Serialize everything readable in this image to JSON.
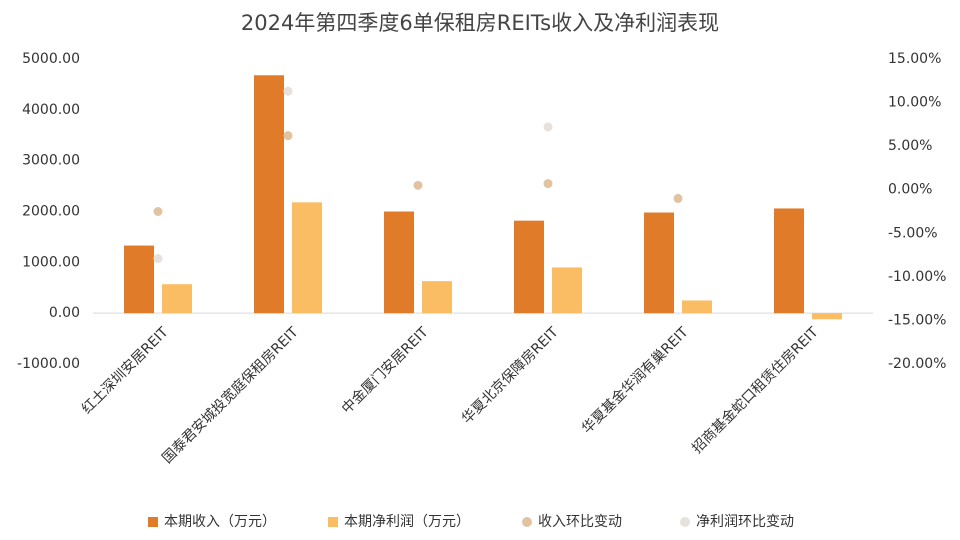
{
  "chart_data": {
    "type": "bar-line",
    "title": "2024年第四季度6单保租房REITs收入及净利润表现",
    "categories": [
      "红土深圳安居REIT",
      "国泰君安城投宽庭保租房REIT",
      "中金厦门安居REIT",
      "华夏北京保障房REIT",
      "华夏基金华润有巢REIT",
      "招商基金蛇口租赁住房REIT"
    ],
    "series": [
      {
        "name": "本期收入（万元）",
        "color": "#e07b29",
        "kind": "bar",
        "values": [
          1330,
          4680,
          2000,
          1820,
          1980,
          2060
        ]
      },
      {
        "name": "本期净利润（万元）",
        "color": "#fbbd63",
        "kind": "bar",
        "values": [
          570,
          2180,
          630,
          900,
          250,
          -120
        ]
      },
      {
        "name": "收入环比变动",
        "color": "#e2c3a1",
        "kind": "dot",
        "axis": "y2",
        "values": [
          -2.5,
          6.2,
          0.5,
          0.7,
          -1.0,
          null
        ]
      },
      {
        "name": "净利润环比变动",
        "color": "#e6e1dc",
        "kind": "dot",
        "axis": "y2",
        "values": [
          -7.9,
          11.3,
          null,
          7.2,
          null,
          null
        ]
      }
    ],
    "ylim": [
      -1000,
      5000
    ],
    "yticks": [
      {
        "value": -1000,
        "label": "-1000.00"
      },
      {
        "value": 0,
        "label": "0.00"
      },
      {
        "value": 1000,
        "label": "1000.00"
      },
      {
        "value": 2000,
        "label": "2000.00"
      },
      {
        "value": 3000,
        "label": "3000.00"
      },
      {
        "value": 4000,
        "label": "4000.00"
      },
      {
        "value": 5000,
        "label": "5000.00"
      }
    ],
    "y2lim": [
      -20,
      15
    ],
    "y2ticks": [
      {
        "value": -20,
        "label": "-20.00%"
      },
      {
        "value": -15,
        "label": "-15.00%"
      },
      {
        "value": -10,
        "label": "-10.00%"
      },
      {
        "value": -5,
        "label": "-5.00%"
      },
      {
        "value": 0,
        "label": "0.00%"
      },
      {
        "value": 5,
        "label": "5.00%"
      },
      {
        "value": 10,
        "label": "10.00%"
      },
      {
        "value": 15,
        "label": "15.00%"
      }
    ],
    "legend": "bottom"
  }
}
